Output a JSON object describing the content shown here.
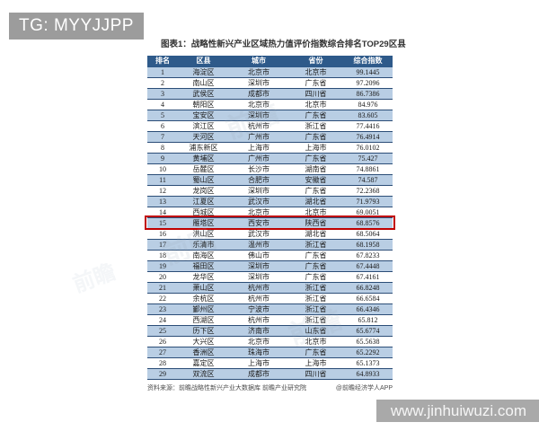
{
  "page": {
    "tg_badge": "TG: MYYJJPP",
    "site_badge": "www.jinhuiwuzi.com",
    "diagonal_watermark": "前瞻"
  },
  "chart_data": {
    "type": "table",
    "title": "图表1：战略性新兴产业区域热力值评价指数综合排名TOP29区县",
    "columns": [
      "排名",
      "区县",
      "城市",
      "省份",
      "综合指数"
    ],
    "rows": [
      [
        "1",
        "海淀区",
        "北京市",
        "北京市",
        "99.1445"
      ],
      [
        "2",
        "南山区",
        "深圳市",
        "广东省",
        "97.2096"
      ],
      [
        "3",
        "武侯区",
        "成都市",
        "四川省",
        "86.7386"
      ],
      [
        "4",
        "朝阳区",
        "北京市",
        "北京市",
        "84.976"
      ],
      [
        "5",
        "宝安区",
        "深圳市",
        "广东省",
        "83.605"
      ],
      [
        "6",
        "滨江区",
        "杭州市",
        "浙江省",
        "77.4416"
      ],
      [
        "7",
        "天河区",
        "广州市",
        "广东省",
        "76.4914"
      ],
      [
        "8",
        "浦东新区",
        "上海市",
        "上海市",
        "76.0102"
      ],
      [
        "9",
        "黄埔区",
        "广州市",
        "广东省",
        "75.427"
      ],
      [
        "10",
        "岳麓区",
        "长沙市",
        "湖南省",
        "74.8861"
      ],
      [
        "11",
        "蜀山区",
        "合肥市",
        "安徽省",
        "74.587"
      ],
      [
        "12",
        "龙岗区",
        "深圳市",
        "广东省",
        "72.2368"
      ],
      [
        "13",
        "江夏区",
        "武汉市",
        "湖北省",
        "71.9793"
      ],
      [
        "14",
        "西城区",
        "北京市",
        "北京市",
        "69.0051"
      ],
      [
        "15",
        "雁塔区",
        "西安市",
        "陕西省",
        "68.8576"
      ],
      [
        "16",
        "洪山区",
        "武汉市",
        "湖北省",
        "68.5064"
      ],
      [
        "17",
        "乐清市",
        "温州市",
        "浙江省",
        "68.1958"
      ],
      [
        "18",
        "南海区",
        "佛山市",
        "广东省",
        "67.8233"
      ],
      [
        "19",
        "福田区",
        "深圳市",
        "广东省",
        "67.4448"
      ],
      [
        "20",
        "龙华区",
        "深圳市",
        "广东省",
        "67.4161"
      ],
      [
        "21",
        "萧山区",
        "杭州市",
        "浙江省",
        "66.8248"
      ],
      [
        "22",
        "余杭区",
        "杭州市",
        "浙江省",
        "66.6584"
      ],
      [
        "23",
        "鄞州区",
        "宁波市",
        "浙江省",
        "66.4346"
      ],
      [
        "24",
        "西湖区",
        "杭州市",
        "浙江省",
        "65.812"
      ],
      [
        "25",
        "历下区",
        "济南市",
        "山东省",
        "65.6774"
      ],
      [
        "26",
        "大兴区",
        "北京市",
        "北京市",
        "65.5638"
      ],
      [
        "27",
        "香洲区",
        "珠海市",
        "广东省",
        "65.2292"
      ],
      [
        "28",
        "嘉定区",
        "上海市",
        "上海市",
        "65.1373"
      ],
      [
        "29",
        "双流区",
        "成都市",
        "四川省",
        "64.8933"
      ]
    ],
    "highlighted_rank": "15",
    "source_note": "资料来源：前瞻战略性新兴产业大数据库 前瞻产业研究院",
    "credit": "@前瞻经济学人APP"
  },
  "colors": {
    "header_bg": "#2e5a8a",
    "alt_row_bg": "#b9cee4",
    "row_border": "#2b4d77",
    "highlight_border": "#c00000",
    "tg_badge_bg": "#9c9c9c",
    "site_badge_bg": "#a9a9a9"
  }
}
